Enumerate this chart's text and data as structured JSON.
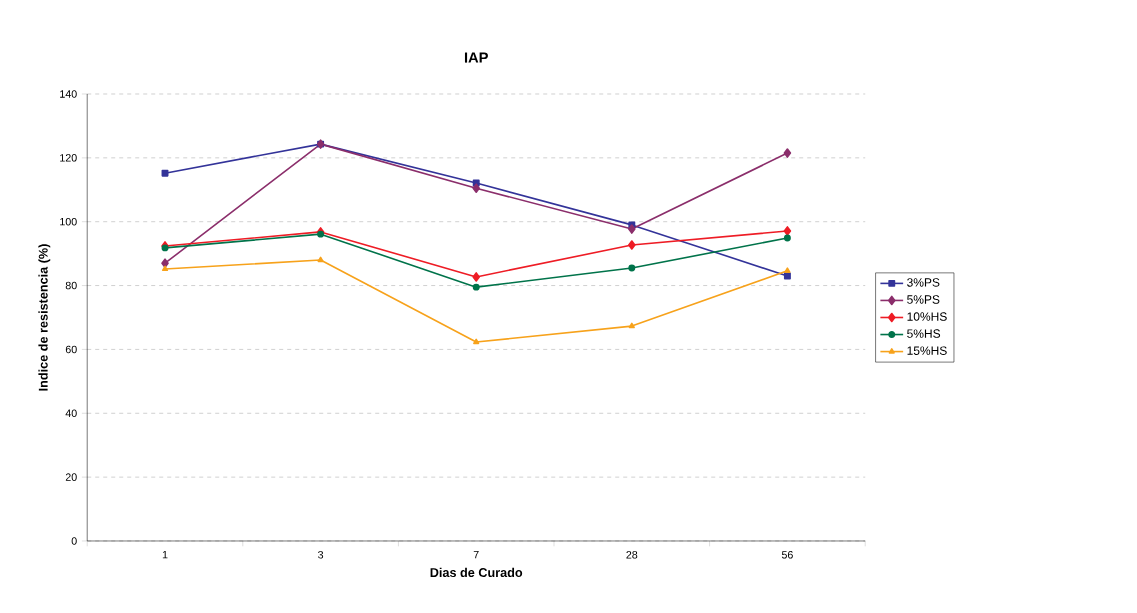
{
  "chart_data": {
    "type": "line",
    "title": "IAP",
    "xlabel": "Dias de Curado",
    "ylabel": "Indice de resistencia (%)",
    "categories": [
      "1",
      "3",
      "7",
      "28",
      "56"
    ],
    "series": [
      {
        "name": "3%PS",
        "color": "#333399",
        "marker": "square",
        "values": [
          115.2,
          124.3,
          112.1,
          99.0,
          83.0
        ]
      },
      {
        "name": "5%PS",
        "color": "#8b2e6b",
        "marker": "diamond",
        "values": [
          87.0,
          124.3,
          110.5,
          97.7,
          121.5
        ]
      },
      {
        "name": "10%HS",
        "color": "#ee1c25",
        "marker": "diamond",
        "values": [
          92.4,
          96.8,
          82.7,
          92.7,
          97.1
        ]
      },
      {
        "name": "5%HS",
        "color": "#00734a",
        "marker": "circle",
        "values": [
          91.8,
          96.1,
          79.5,
          85.5,
          94.9
        ]
      },
      {
        "name": "15%HS",
        "color": "#f7a21b",
        "marker": "triangle",
        "values": [
          85.2,
          88.0,
          62.3,
          67.3,
          84.6
        ]
      }
    ],
    "ylim": [
      0,
      140
    ],
    "yticks": [
      0,
      20,
      40,
      60,
      80,
      100,
      120,
      140
    ],
    "grid": "y",
    "legend": "right",
    "line_style": "solid"
  }
}
